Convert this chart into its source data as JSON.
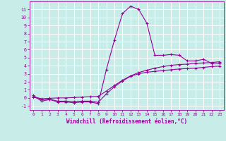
{
  "title": "",
  "xlabel": "Windchill (Refroidissement éolien,°C)",
  "ylabel": "",
  "bg_color": "#c8ece8",
  "grid_color": "#b0dcd8",
  "line_color": "#990099",
  "xlim": [
    -0.5,
    23.5
  ],
  "ylim": [
    -1.5,
    12.0
  ],
  "xticks": [
    0,
    1,
    2,
    3,
    4,
    5,
    6,
    7,
    8,
    9,
    10,
    11,
    12,
    13,
    14,
    15,
    16,
    17,
    18,
    19,
    20,
    21,
    22,
    23
  ],
  "yticks": [
    -1,
    0,
    1,
    2,
    3,
    4,
    5,
    6,
    7,
    8,
    9,
    10,
    11
  ],
  "line1_x": [
    0,
    1,
    2,
    3,
    4,
    5,
    6,
    7,
    8,
    9,
    10,
    11,
    12,
    13,
    14,
    15,
    16,
    17,
    18,
    19,
    20,
    21,
    22,
    23
  ],
  "line1_y": [
    0.3,
    -0.4,
    -0.2,
    -0.5,
    -0.5,
    -0.6,
    -0.5,
    -0.5,
    -0.7,
    3.5,
    7.2,
    10.5,
    11.4,
    11.0,
    9.3,
    5.3,
    5.3,
    5.4,
    5.3,
    4.6,
    4.6,
    4.8,
    4.3,
    4.3
  ],
  "line2_x": [
    0,
    1,
    2,
    3,
    4,
    5,
    6,
    7,
    8,
    9,
    10,
    11,
    12,
    13,
    14,
    15,
    16,
    17,
    18,
    19,
    20,
    21,
    22,
    23
  ],
  "line2_y": [
    0.15,
    -0.1,
    -0.05,
    0.0,
    0.0,
    0.05,
    0.1,
    0.15,
    0.2,
    0.85,
    1.55,
    2.2,
    2.75,
    3.15,
    3.45,
    3.7,
    3.9,
    4.05,
    4.15,
    4.2,
    4.3,
    4.35,
    4.4,
    4.5
  ],
  "line3_x": [
    0,
    1,
    2,
    3,
    4,
    5,
    6,
    7,
    8,
    9,
    10,
    11,
    12,
    13,
    14,
    15,
    16,
    17,
    18,
    19,
    20,
    21,
    22,
    23
  ],
  "line3_y": [
    0.1,
    -0.2,
    -0.15,
    -0.4,
    -0.4,
    -0.45,
    -0.4,
    -0.4,
    -0.55,
    0.5,
    1.4,
    2.1,
    2.7,
    3.0,
    3.2,
    3.3,
    3.4,
    3.5,
    3.6,
    3.65,
    3.7,
    3.8,
    3.9,
    3.95
  ]
}
